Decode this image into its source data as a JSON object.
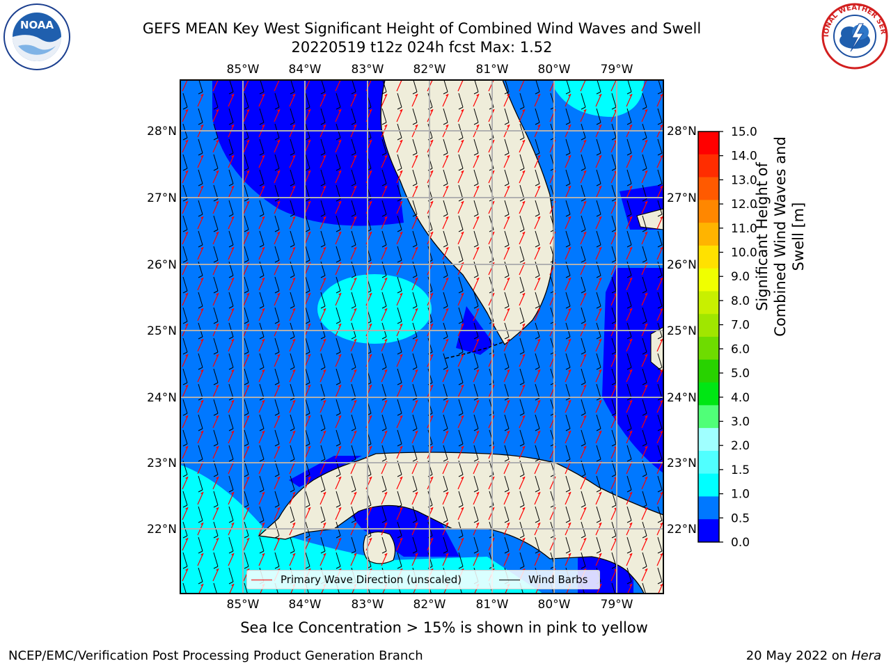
{
  "title": {
    "line1": "GEFS MEAN Key West Significant Height of Combined Wind Waves and Swell",
    "line2": "20220519 t12z 024h fcst   Max: 1.52"
  },
  "map": {
    "lon_labels": [
      "85°W",
      "84°W",
      "83°W",
      "82°W",
      "81°W",
      "80°W",
      "79°W"
    ],
    "lat_labels": [
      "28°N",
      "27°N",
      "26°N",
      "25°N",
      "24°N",
      "23°N",
      "22°N"
    ],
    "legend": {
      "wave_label": "Primary Wave Direction (unscaled)",
      "wind_label": "Wind Barbs",
      "wave_color": "#ff0000",
      "wind_color": "#000000"
    },
    "land_color": "#efedda",
    "grid_color": "#b0b0b0"
  },
  "colorbar": {
    "title": "Significant Height of Combined Wind Waves and Swell [m]",
    "ticks": [
      "15.0",
      "14.0",
      "13.0",
      "12.0",
      "11.0",
      "10.0",
      "9.0",
      "8.0",
      "7.0",
      "6.0",
      "5.0",
      "4.0",
      "3.0",
      "2.0",
      "1.5",
      "1.0",
      "0.5",
      "0.0"
    ],
    "colors_top_to_bottom": [
      "#ff0000",
      "#ff2d00",
      "#ff5a00",
      "#ff8700",
      "#ffb400",
      "#ffe100",
      "#f0ff00",
      "#c8f000",
      "#a0e600",
      "#6edc00",
      "#28d200",
      "#00e614",
      "#50ff78",
      "#a0ffff",
      "#50ffff",
      "#00ffff",
      "#0078ff",
      "#0000ff"
    ]
  },
  "sub_note": "Sea Ice Concentration > 15% is shown in pink to yellow",
  "footer": {
    "left": "NCEP/EMC/Verification Post Processing Product Generation Branch",
    "right_date": "20 May 2022 on",
    "right_host": "Hera"
  },
  "logos": {
    "noaa_text": "NOAA",
    "nws_text": "NATIONAL WEATHER SERVICE"
  }
}
